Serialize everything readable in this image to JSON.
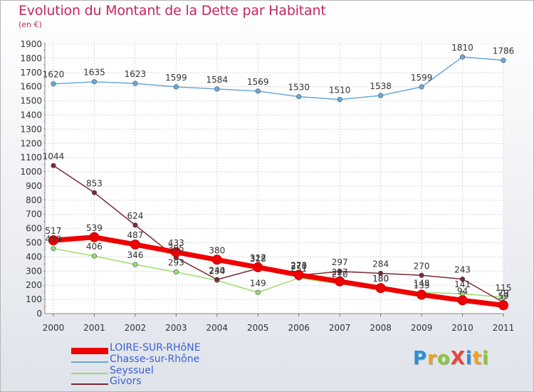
{
  "title": "Evolution du Montant de la Dette par Habitant",
  "subtitle": "(en €)",
  "logo": "ProXiti",
  "chart_data": {
    "type": "line",
    "title": "Evolution du Montant de la Dette par Habitant",
    "ylabel": "(en €)",
    "x": [
      "2000",
      "2001",
      "2002",
      "2003",
      "2004",
      "2005",
      "2006",
      "2007",
      "2008",
      "2009",
      "2010",
      "2011"
    ],
    "ylim": [
      0,
      1900
    ],
    "yticks": [
      0,
      100,
      200,
      300,
      400,
      500,
      600,
      700,
      800,
      900,
      1000,
      1100,
      1200,
      1300,
      1400,
      1500,
      1600,
      1700,
      1800,
      1900
    ],
    "grid": true,
    "legend_position": "bottom-left",
    "series": [
      {
        "name": "LOIRE-SUR-RHôNE",
        "color": "#ee0000",
        "width": 7,
        "values": [
          517,
          539,
          487,
          433,
          380,
          327,
          273,
          227,
          180,
          133,
          94,
          59
        ],
        "labels": [
          "517",
          "539",
          "487",
          "433",
          "380",
          "327",
          "273",
          "227",
          "180",
          "133",
          "94",
          "59"
        ]
      },
      {
        "name": "Chasse-sur-Rhône",
        "color": "#6aa8d8",
        "width": 1.5,
        "values": [
          1620,
          1635,
          1623,
          1599,
          1584,
          1569,
          1530,
          1510,
          1538,
          1599,
          1810,
          1786
        ],
        "labels": [
          "1620",
          "1635",
          "1623",
          "1599",
          "1584",
          "1569",
          "1530",
          "1510",
          "1538",
          "1599",
          "1810",
          "1786"
        ]
      },
      {
        "name": "Seyssuel",
        "color": "#99dd66",
        "width": 1.5,
        "values": [
          459,
          406,
          346,
          293,
          234,
          149,
          251,
          210,
          180,
          148,
          141,
          115
        ],
        "labels": [
          "459",
          "406",
          "346",
          "293",
          "234",
          "149",
          "251",
          "210",
          "180",
          "148",
          "141",
          "115"
        ]
      },
      {
        "name": "Givors",
        "color": "#7a2a32",
        "width": 1.5,
        "values": [
          1044,
          853,
          624,
          395,
          240,
          318,
          270,
          297,
          284,
          270,
          243,
          79
        ],
        "labels": [
          "1044",
          "853",
          "624",
          "395",
          "240",
          "318",
          "270",
          "297",
          "284",
          "270",
          "243",
          "79"
        ]
      }
    ]
  }
}
